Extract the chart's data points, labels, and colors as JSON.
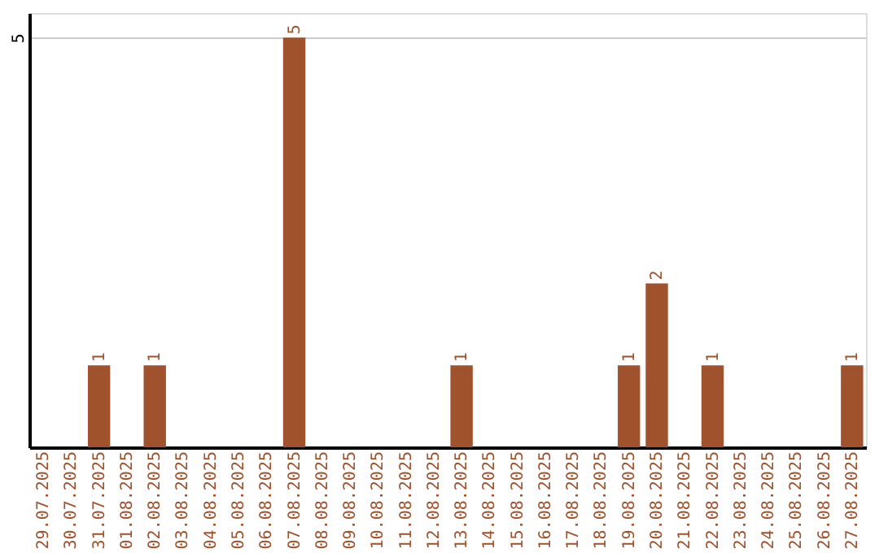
{
  "chart_data": {
    "type": "bar",
    "categories": [
      "29.07.2025",
      "30.07.2025",
      "31.07.2025",
      "01.08.2025",
      "02.08.2025",
      "03.08.2025",
      "04.08.2025",
      "05.08.2025",
      "06.08.2025",
      "07.08.2025",
      "08.08.2025",
      "09.08.2025",
      "10.08.2025",
      "11.08.2025",
      "12.08.2025",
      "13.08.2025",
      "14.08.2025",
      "15.08.2025",
      "16.08.2025",
      "17.08.2025",
      "18.08.2025",
      "19.08.2025",
      "20.08.2025",
      "21.08.2025",
      "22.08.2025",
      "23.08.2025",
      "24.08.2025",
      "25.08.2025",
      "26.08.2025",
      "27.08.2025"
    ],
    "values": [
      0,
      0,
      1,
      0,
      1,
      0,
      0,
      0,
      0,
      5,
      0,
      0,
      0,
      0,
      0,
      1,
      0,
      0,
      0,
      0,
      0,
      1,
      2,
      0,
      1,
      0,
      0,
      0,
      0,
      1
    ],
    "value_labels": [
      null,
      null,
      "1",
      null,
      "1",
      null,
      null,
      null,
      null,
      "5",
      null,
      null,
      null,
      null,
      null,
      "1",
      null,
      null,
      null,
      null,
      null,
      "1",
      "2",
      null,
      "1",
      null,
      null,
      null,
      null,
      "1"
    ],
    "color": "#a0522d",
    "ylim": [
      0,
      5.3
    ],
    "yticks": [
      5
    ],
    "grid": "y"
  }
}
